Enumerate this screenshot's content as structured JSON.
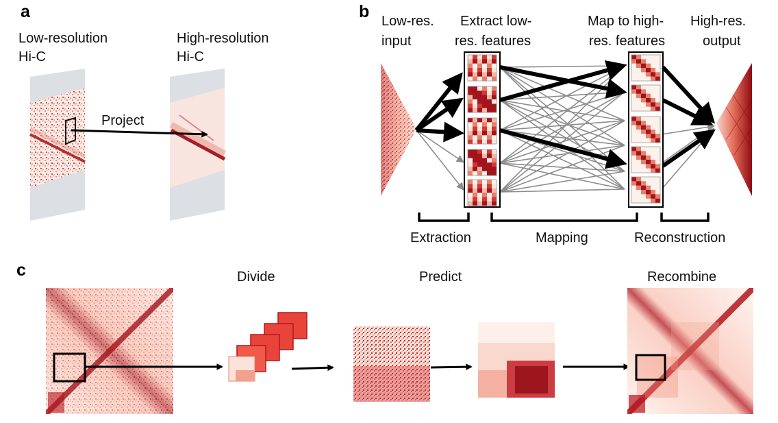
{
  "panel_a": {
    "letter": "a",
    "low_res_title": [
      "Low-resolution",
      "Hi-C"
    ],
    "high_res_title": [
      "High-resolution",
      "Hi-C"
    ],
    "project_label": "Project"
  },
  "panel_b": {
    "letter": "b",
    "headers": {
      "input": [
        "Low-res.",
        "input"
      ],
      "extract": [
        "Extract low-",
        "res. features"
      ],
      "map": [
        "Map to high-",
        "res. features"
      ],
      "output": [
        "High-res.",
        "output"
      ]
    },
    "stages": {
      "extraction": "Extraction",
      "mapping": "Mapping",
      "reconstruction": "Reconstruction"
    }
  },
  "panel_c": {
    "letter": "c",
    "steps": {
      "divide": "Divide",
      "predict": "Predict",
      "recombine": "Recombine"
    }
  },
  "colors": {
    "heatmap_dark": "#9b0a13",
    "heatmap_mid": "#e03a2e",
    "heatmap_light": "#fbe3dc",
    "arrow_dark": "#000000",
    "arrow_light": "#8c8c8c"
  }
}
